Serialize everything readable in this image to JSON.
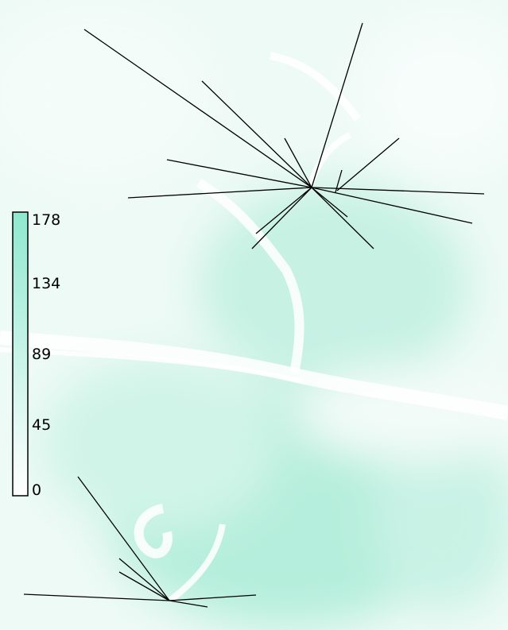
{
  "colors": {
    "field_low": "#ffffff",
    "field_high": "#8fe8cf",
    "line": "#000000",
    "bar_border": "#000000"
  },
  "legend": {
    "type": "colorbar",
    "min": 0,
    "max": 178,
    "ticks": [
      "178",
      "134",
      "89",
      "45",
      "0"
    ]
  },
  "map_layers": {
    "background": "scalar-field-shading",
    "symbols": "star-line-clusters",
    "cluster_count": 2
  }
}
